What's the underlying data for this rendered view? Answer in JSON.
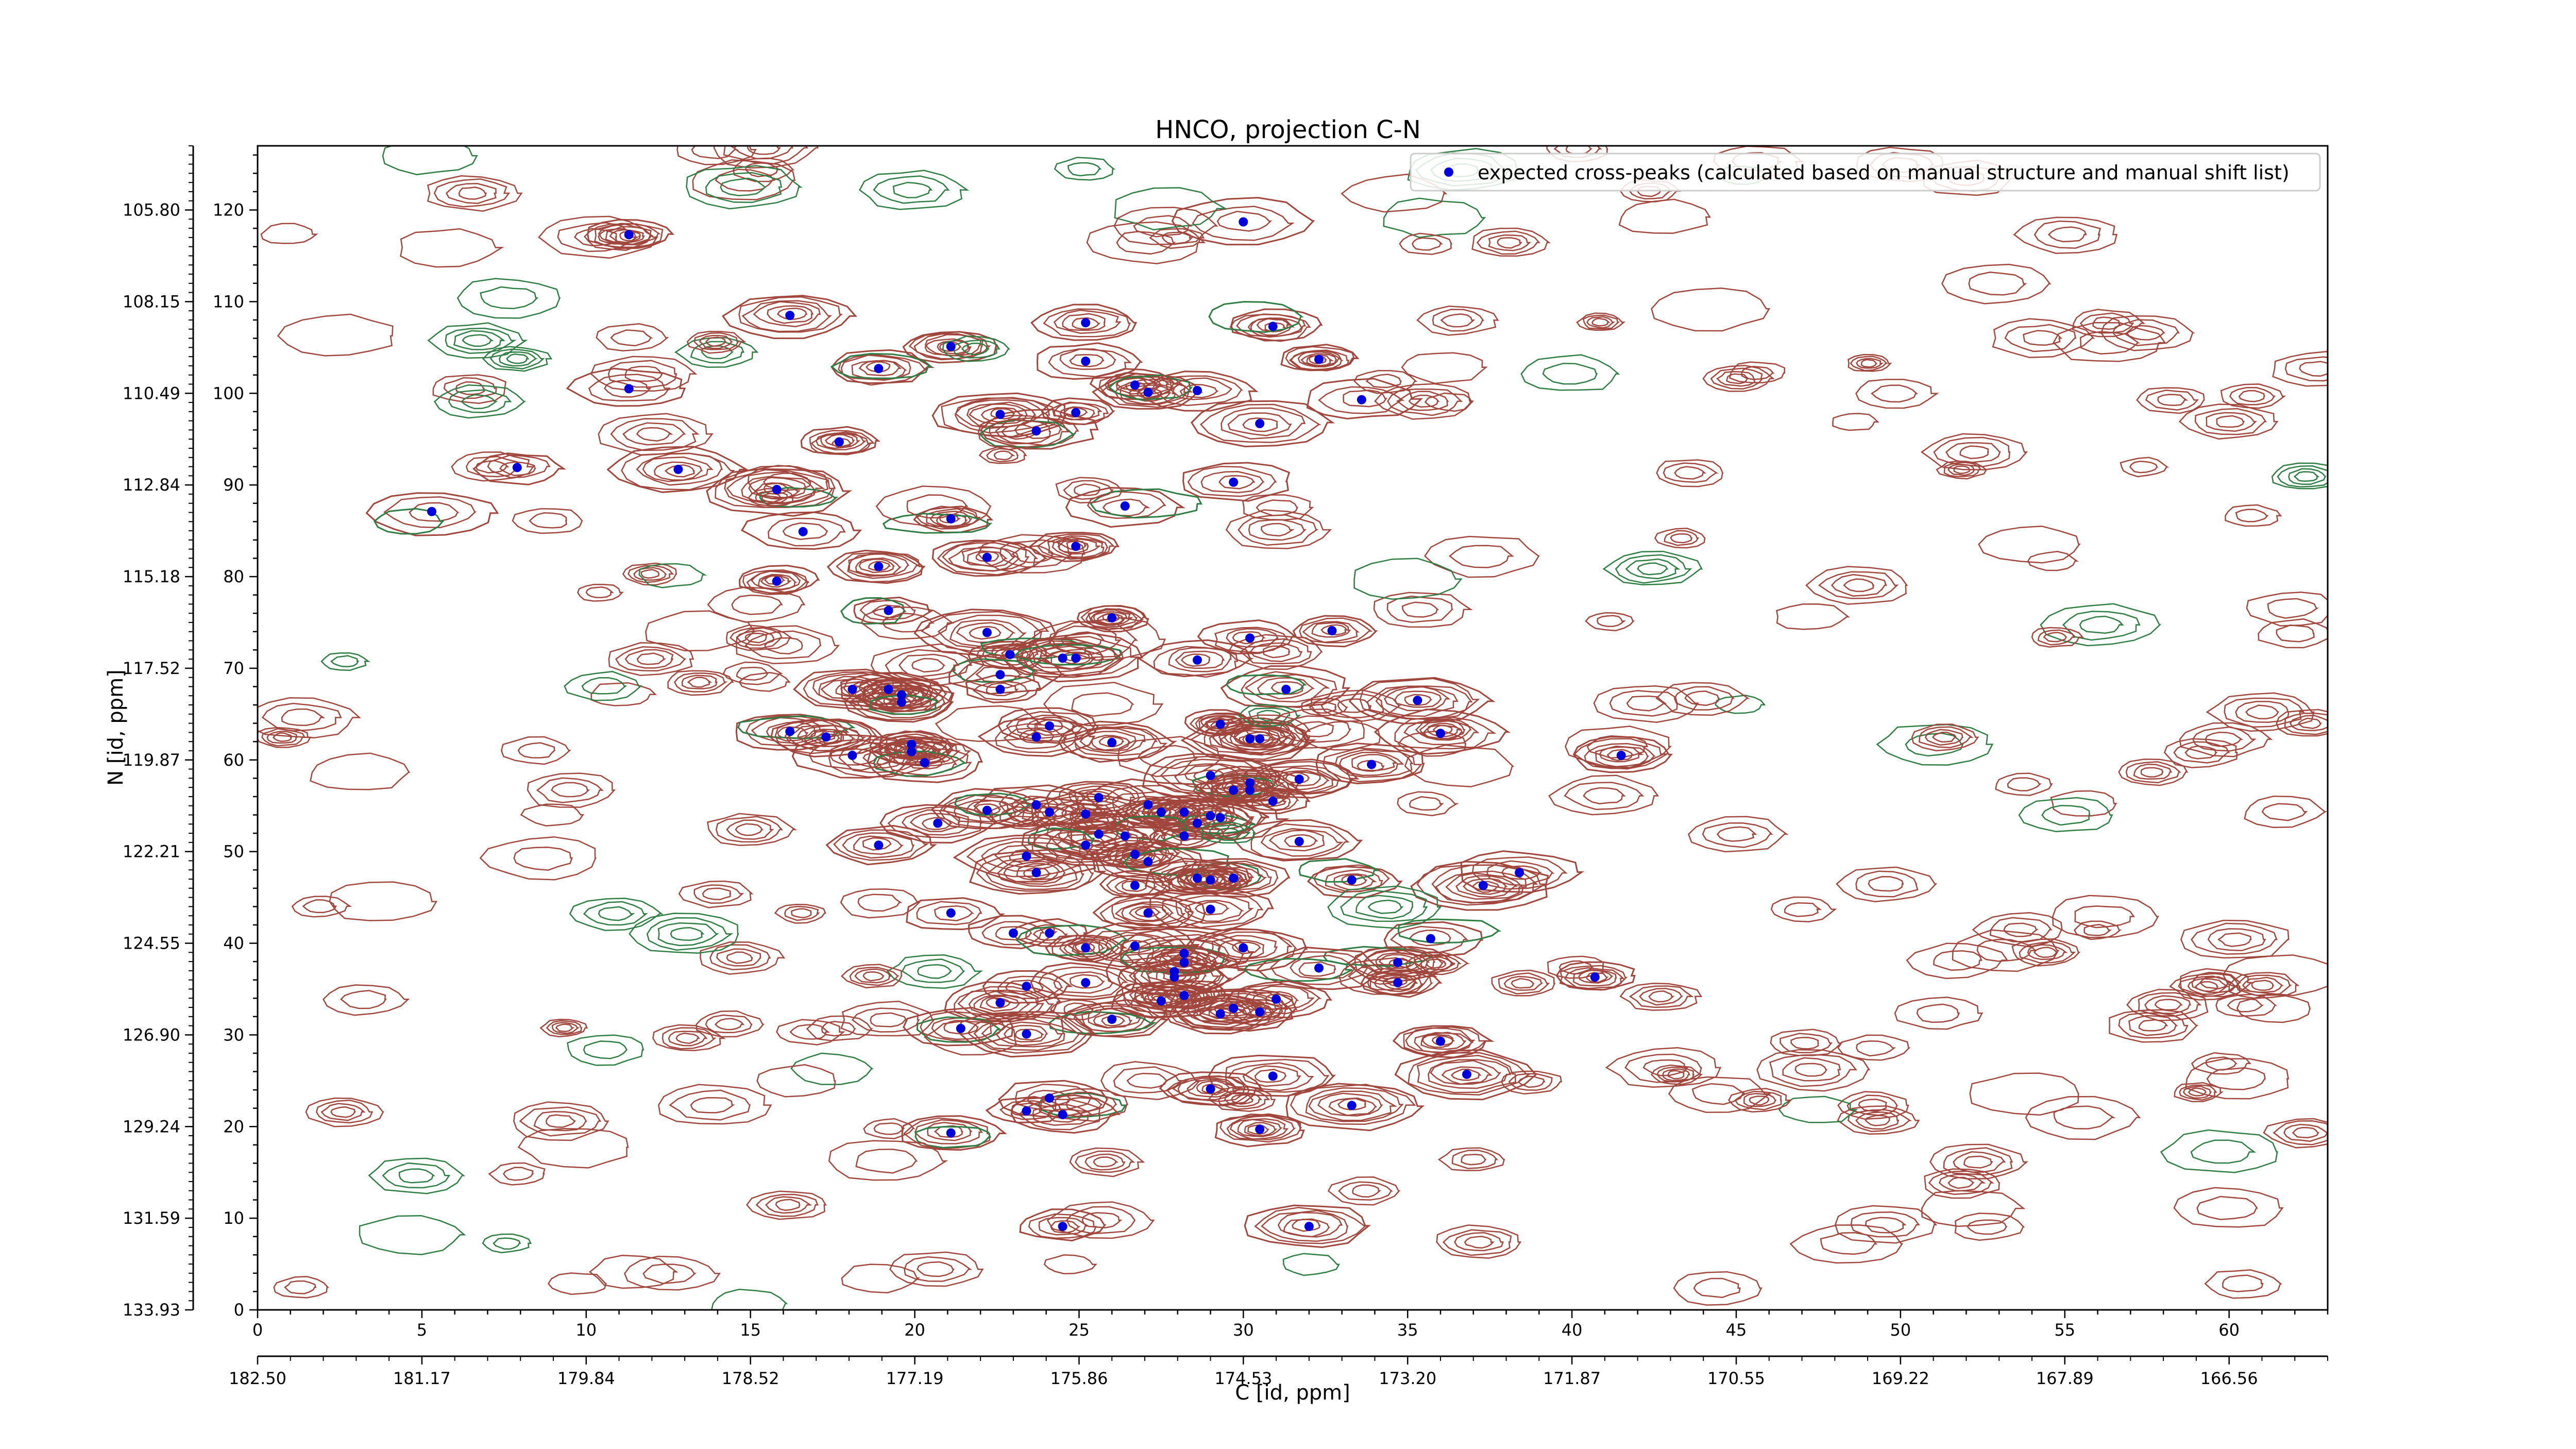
{
  "chart_data": {
    "type": "scatter",
    "title": "HNCO, projection C-N",
    "xlabel": "C [id, ppm]",
    "ylabel": "N [id, ppm]",
    "x_index_range": [
      0,
      63
    ],
    "y_index_range": [
      0,
      127
    ],
    "x_index_ticks": [
      0,
      5,
      10,
      15,
      20,
      25,
      30,
      35,
      40,
      45,
      50,
      55,
      60
    ],
    "y_index_ticks": [
      0,
      10,
      20,
      30,
      40,
      50,
      60,
      70,
      80,
      90,
      100,
      110,
      120
    ],
    "x_ppm_ticks": [
      "182.50",
      "181.17",
      "179.84",
      "178.52",
      "177.19",
      "175.86",
      "174.53",
      "173.20",
      "171.87",
      "170.55",
      "169.22",
      "167.89",
      "166.56"
    ],
    "y_ppm_ticks": [
      "133.93",
      "131.59",
      "129.24",
      "126.90",
      "124.55",
      "122.21",
      "119.87",
      "117.52",
      "115.18",
      "112.84",
      "110.49",
      "108.15",
      "105.80"
    ],
    "legend": {
      "position": "top-right",
      "label": "expected cross-peaks (calculated based on manual structure and manual shift list)"
    },
    "colors": {
      "positive_contour": "#a0463c",
      "negative_contour": "#2e7d43",
      "marker": "#0000dd"
    },
    "series": [
      {
        "name": "expected cross-peaks (calculated based on manual structure and manual shift list)",
        "points": [
          [
            30.0,
            118.7
          ],
          [
            11.3,
            117.3
          ],
          [
            16.2,
            108.5
          ],
          [
            25.2,
            107.7
          ],
          [
            30.9,
            107.3
          ],
          [
            21.1,
            105.1
          ],
          [
            18.9,
            102.7
          ],
          [
            25.2,
            103.5
          ],
          [
            32.3,
            103.7
          ],
          [
            11.3,
            100.5
          ],
          [
            26.7,
            100.9
          ],
          [
            27.1,
            100.1
          ],
          [
            28.6,
            100.3
          ],
          [
            33.6,
            99.3
          ],
          [
            22.6,
            97.7
          ],
          [
            24.9,
            97.9
          ],
          [
            30.5,
            96.7
          ],
          [
            23.7,
            95.9
          ],
          [
            17.7,
            94.7
          ],
          [
            7.9,
            91.9
          ],
          [
            12.8,
            91.7
          ],
          [
            29.7,
            90.3
          ],
          [
            15.8,
            89.5
          ],
          [
            5.3,
            87.1
          ],
          [
            26.4,
            87.7
          ],
          [
            21.1,
            86.3
          ],
          [
            16.6,
            84.9
          ],
          [
            24.9,
            83.3
          ],
          [
            22.2,
            82.1
          ],
          [
            18.9,
            81.1
          ],
          [
            15.8,
            79.5
          ],
          [
            19.2,
            76.3
          ],
          [
            26.0,
            75.5
          ],
          [
            22.2,
            73.9
          ],
          [
            30.2,
            73.3
          ],
          [
            32.7,
            74.1
          ],
          [
            22.9,
            71.5
          ],
          [
            24.5,
            71.1
          ],
          [
            24.9,
            71.1
          ],
          [
            28.6,
            70.9
          ],
          [
            22.6,
            69.3
          ],
          [
            18.1,
            67.7
          ],
          [
            19.2,
            67.7
          ],
          [
            19.6,
            67.1
          ],
          [
            22.6,
            67.7
          ],
          [
            31.3,
            67.7
          ],
          [
            35.3,
            66.5
          ],
          [
            19.6,
            66.3
          ],
          [
            24.1,
            63.7
          ],
          [
            29.3,
            63.9
          ],
          [
            16.2,
            63.1
          ],
          [
            17.3,
            62.5
          ],
          [
            19.9,
            61.7
          ],
          [
            23.7,
            62.5
          ],
          [
            26.0,
            61.9
          ],
          [
            30.2,
            62.3
          ],
          [
            30.5,
            62.3
          ],
          [
            36.0,
            62.9
          ],
          [
            18.1,
            60.5
          ],
          [
            19.9,
            60.9
          ],
          [
            20.3,
            59.7
          ],
          [
            33.9,
            59.5
          ],
          [
            41.5,
            60.5
          ],
          [
            29.0,
            58.3
          ],
          [
            31.7,
            57.9
          ],
          [
            30.2,
            57.5
          ],
          [
            29.7,
            56.7
          ],
          [
            30.2,
            56.7
          ],
          [
            25.6,
            55.9
          ],
          [
            27.1,
            55.1
          ],
          [
            30.9,
            55.5
          ],
          [
            23.7,
            55.1
          ],
          [
            24.1,
            54.3
          ],
          [
            25.2,
            54.1
          ],
          [
            27.5,
            54.3
          ],
          [
            28.2,
            54.3
          ],
          [
            29.0,
            53.9
          ],
          [
            29.3,
            53.7
          ],
          [
            28.6,
            53.1
          ],
          [
            20.7,
            53.1
          ],
          [
            22.2,
            54.5
          ],
          [
            25.6,
            51.9
          ],
          [
            26.4,
            51.7
          ],
          [
            28.2,
            51.7
          ],
          [
            31.7,
            51.1
          ],
          [
            18.9,
            50.7
          ],
          [
            25.2,
            50.7
          ],
          [
            26.7,
            49.7
          ],
          [
            27.1,
            48.9
          ],
          [
            23.4,
            49.5
          ],
          [
            28.6,
            47.1
          ],
          [
            29.0,
            46.9
          ],
          [
            29.7,
            47.1
          ],
          [
            33.3,
            46.9
          ],
          [
            23.7,
            47.7
          ],
          [
            37.3,
            46.3
          ],
          [
            38.4,
            47.7
          ],
          [
            26.7,
            46.3
          ],
          [
            29.0,
            43.7
          ],
          [
            21.1,
            43.3
          ],
          [
            27.1,
            43.3
          ],
          [
            23.0,
            41.1
          ],
          [
            24.1,
            41.1
          ],
          [
            25.2,
            39.5
          ],
          [
            26.7,
            39.7
          ],
          [
            28.2,
            38.9
          ],
          [
            28.2,
            37.9
          ],
          [
            30.0,
            39.5
          ],
          [
            34.7,
            37.9
          ],
          [
            35.7,
            40.5
          ],
          [
            25.2,
            35.7
          ],
          [
            27.9,
            36.9
          ],
          [
            27.9,
            36.3
          ],
          [
            32.3,
            37.3
          ],
          [
            34.7,
            35.7
          ],
          [
            40.7,
            36.3
          ],
          [
            23.4,
            35.3
          ],
          [
            22.6,
            33.5
          ],
          [
            27.5,
            33.7
          ],
          [
            28.2,
            34.3
          ],
          [
            31.0,
            33.9
          ],
          [
            29.7,
            32.9
          ],
          [
            30.5,
            32.5
          ],
          [
            29.3,
            32.3
          ],
          [
            26.0,
            31.7
          ],
          [
            21.4,
            30.7
          ],
          [
            23.4,
            30.1
          ],
          [
            36.0,
            29.3
          ],
          [
            36.8,
            25.7
          ],
          [
            30.9,
            25.5
          ],
          [
            29.0,
            24.1
          ],
          [
            33.3,
            22.3
          ],
          [
            24.1,
            23.1
          ],
          [
            23.4,
            21.7
          ],
          [
            24.5,
            21.3
          ],
          [
            30.5,
            19.7
          ],
          [
            21.1,
            19.3
          ],
          [
            32.0,
            9.1
          ],
          [
            24.5,
            9.1
          ]
        ]
      }
    ]
  }
}
